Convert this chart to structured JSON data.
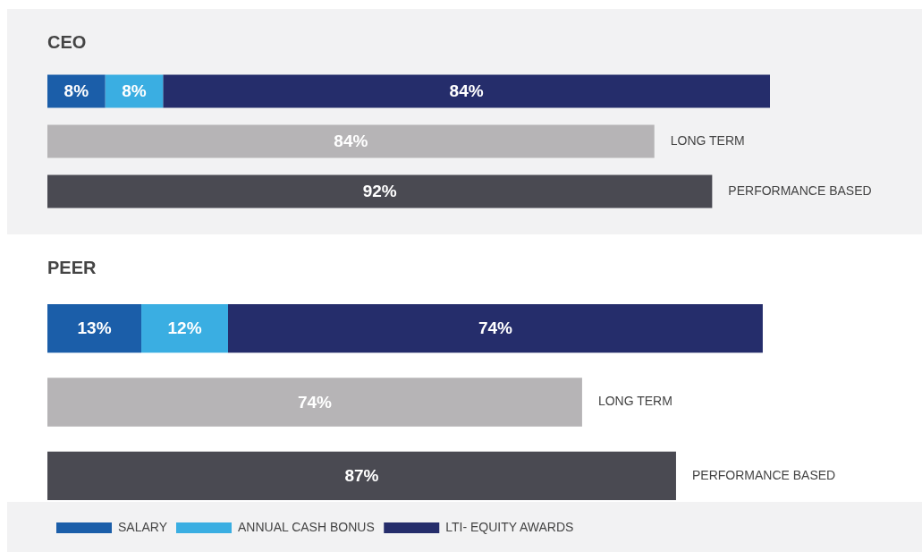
{
  "chart_data": [
    {
      "type": "bar",
      "title": "CEO",
      "orientation": "horizontal",
      "stacked": true,
      "tick_labels": false,
      "legend": false,
      "categories": [
        null,
        "LONG TERM",
        "PERFORMANCE BASED"
      ],
      "series": [
        {
          "color": "#1b5ea9",
          "values": [
            8,
            null,
            null
          ],
          "value_labels": [
            "8%",
            null,
            null
          ]
        },
        {
          "color": "#3aaee2",
          "values": [
            8,
            null,
            null
          ],
          "value_labels": [
            "8%",
            null,
            null
          ]
        },
        {
          "color": "#252d6b",
          "values": [
            84,
            null,
            null
          ],
          "value_labels": [
            "84%",
            null,
            null
          ]
        },
        {
          "color": "#b6b4b6",
          "values": [
            null,
            84,
            null
          ],
          "value_labels": [
            null,
            "84%",
            null
          ]
        },
        {
          "color": "#4a4a52",
          "values": [
            null,
            null,
            92
          ],
          "value_labels": [
            null,
            null,
            "92%"
          ]
        }
      ]
    },
    {
      "type": "bar",
      "title": "PEER",
      "orientation": "horizontal",
      "stacked": true,
      "tick_labels": false,
      "legend": "bottom",
      "categories": [
        null,
        "LONG TERM",
        "PERFORMANCE BASED"
      ],
      "series": [
        {
          "name": "SALARY",
          "color": "#1b5ea9",
          "values": [
            13,
            null,
            null
          ],
          "value_labels": [
            "13%",
            null,
            null
          ]
        },
        {
          "name": "ANNUAL CASH BONUS",
          "color": "#3aaee2",
          "values": [
            12,
            null,
            null
          ],
          "value_labels": [
            "12%",
            null,
            null
          ]
        },
        {
          "name": "LTI- EQUITY AWARDS",
          "color": "#252d6b",
          "values": [
            74,
            null,
            null
          ],
          "value_labels": [
            "74%",
            null,
            null
          ]
        },
        {
          "color": "#b6b4b6",
          "values": [
            null,
            74,
            null
          ],
          "value_labels": [
            null,
            "74%",
            null
          ]
        },
        {
          "color": "#4a4a52",
          "values": [
            null,
            null,
            87
          ],
          "value_labels": [
            null,
            null,
            "87%"
          ]
        }
      ]
    }
  ]
}
